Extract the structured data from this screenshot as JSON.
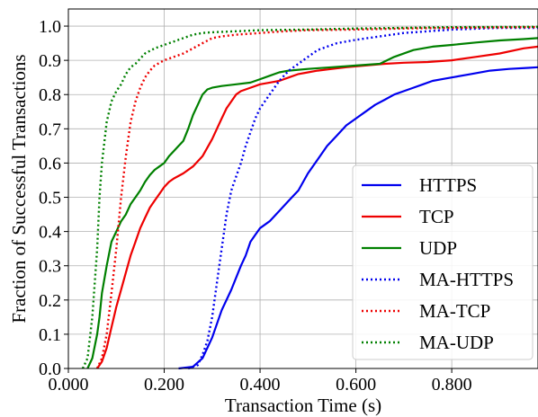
{
  "chart_data": {
    "type": "line",
    "xlabel": "Transaction Time (s)",
    "ylabel": "Fraction of Successful Transactions",
    "xlim": [
      0,
      0.98
    ],
    "ylim": [
      0,
      1.05
    ],
    "x_ticks": [
      0,
      0.2,
      0.4,
      0.6,
      0.8
    ],
    "x_tick_labels": [
      "0.000",
      "0.200",
      "0.400",
      "0.600",
      "0.800"
    ],
    "y_ticks": [
      0,
      0.1,
      0.2,
      0.3,
      0.4,
      0.5,
      0.6,
      0.7,
      0.8,
      0.9,
      1.0
    ],
    "y_tick_labels": [
      "0.0",
      "0.1",
      "0.2",
      "0.3",
      "0.4",
      "0.5",
      "0.6",
      "0.7",
      "0.8",
      "0.9",
      "1.0"
    ],
    "grid": true,
    "legend_position": "lower-right",
    "series": [
      {
        "name": "HTTPS",
        "color": "#0000ee",
        "style": "solid",
        "points": [
          [
            0.23,
            0
          ],
          [
            0.26,
            0.005
          ],
          [
            0.28,
            0.03
          ],
          [
            0.3,
            0.09
          ],
          [
            0.32,
            0.17
          ],
          [
            0.34,
            0.23
          ],
          [
            0.36,
            0.3
          ],
          [
            0.37,
            0.33
          ],
          [
            0.38,
            0.37
          ],
          [
            0.39,
            0.39
          ],
          [
            0.4,
            0.41
          ],
          [
            0.42,
            0.43
          ],
          [
            0.44,
            0.46
          ],
          [
            0.46,
            0.49
          ],
          [
            0.48,
            0.52
          ],
          [
            0.5,
            0.57
          ],
          [
            0.52,
            0.61
          ],
          [
            0.54,
            0.65
          ],
          [
            0.56,
            0.68
          ],
          [
            0.58,
            0.71
          ],
          [
            0.6,
            0.73
          ],
          [
            0.62,
            0.75
          ],
          [
            0.64,
            0.77
          ],
          [
            0.66,
            0.785
          ],
          [
            0.68,
            0.8
          ],
          [
            0.7,
            0.81
          ],
          [
            0.72,
            0.82
          ],
          [
            0.74,
            0.83
          ],
          [
            0.76,
            0.84
          ],
          [
            0.78,
            0.845
          ],
          [
            0.8,
            0.85
          ],
          [
            0.84,
            0.86
          ],
          [
            0.88,
            0.87
          ],
          [
            0.92,
            0.875
          ],
          [
            0.96,
            0.878
          ],
          [
            0.98,
            0.88
          ]
        ]
      },
      {
        "name": "TCP",
        "color": "#ee0000",
        "style": "solid",
        "points": [
          [
            0.06,
            0
          ],
          [
            0.07,
            0.02
          ],
          [
            0.08,
            0.06
          ],
          [
            0.09,
            0.12
          ],
          [
            0.1,
            0.18
          ],
          [
            0.11,
            0.23
          ],
          [
            0.12,
            0.28
          ],
          [
            0.13,
            0.33
          ],
          [
            0.14,
            0.37
          ],
          [
            0.15,
            0.41
          ],
          [
            0.16,
            0.44
          ],
          [
            0.17,
            0.47
          ],
          [
            0.18,
            0.49
          ],
          [
            0.19,
            0.51
          ],
          [
            0.2,
            0.53
          ],
          [
            0.21,
            0.545
          ],
          [
            0.22,
            0.555
          ],
          [
            0.24,
            0.57
          ],
          [
            0.26,
            0.59
          ],
          [
            0.28,
            0.62
          ],
          [
            0.3,
            0.67
          ],
          [
            0.31,
            0.7
          ],
          [
            0.32,
            0.73
          ],
          [
            0.33,
            0.76
          ],
          [
            0.34,
            0.78
          ],
          [
            0.35,
            0.8
          ],
          [
            0.36,
            0.81
          ],
          [
            0.38,
            0.82
          ],
          [
            0.4,
            0.83
          ],
          [
            0.42,
            0.835
          ],
          [
            0.44,
            0.84
          ],
          [
            0.46,
            0.85
          ],
          [
            0.48,
            0.86
          ],
          [
            0.5,
            0.865
          ],
          [
            0.52,
            0.87
          ],
          [
            0.55,
            0.875
          ],
          [
            0.58,
            0.88
          ],
          [
            0.62,
            0.885
          ],
          [
            0.66,
            0.89
          ],
          [
            0.7,
            0.893
          ],
          [
            0.75,
            0.895
          ],
          [
            0.8,
            0.9
          ],
          [
            0.85,
            0.91
          ],
          [
            0.9,
            0.92
          ],
          [
            0.95,
            0.935
          ],
          [
            0.98,
            0.94
          ]
        ]
      },
      {
        "name": "UDP",
        "color": "#008000",
        "style": "solid",
        "points": [
          [
            0.04,
            0
          ],
          [
            0.05,
            0.03
          ],
          [
            0.06,
            0.1
          ],
          [
            0.065,
            0.15
          ],
          [
            0.07,
            0.22
          ],
          [
            0.08,
            0.3
          ],
          [
            0.09,
            0.37
          ],
          [
            0.1,
            0.4
          ],
          [
            0.11,
            0.43
          ],
          [
            0.12,
            0.45
          ],
          [
            0.13,
            0.48
          ],
          [
            0.14,
            0.5
          ],
          [
            0.15,
            0.52
          ],
          [
            0.16,
            0.545
          ],
          [
            0.17,
            0.565
          ],
          [
            0.18,
            0.58
          ],
          [
            0.19,
            0.59
          ],
          [
            0.2,
            0.6
          ],
          [
            0.21,
            0.62
          ],
          [
            0.22,
            0.635
          ],
          [
            0.23,
            0.65
          ],
          [
            0.24,
            0.665
          ],
          [
            0.25,
            0.7
          ],
          [
            0.26,
            0.74
          ],
          [
            0.27,
            0.77
          ],
          [
            0.28,
            0.8
          ],
          [
            0.29,
            0.815
          ],
          [
            0.3,
            0.82
          ],
          [
            0.32,
            0.825
          ],
          [
            0.35,
            0.83
          ],
          [
            0.38,
            0.835
          ],
          [
            0.4,
            0.845
          ],
          [
            0.42,
            0.855
          ],
          [
            0.44,
            0.865
          ],
          [
            0.46,
            0.87
          ],
          [
            0.5,
            0.875
          ],
          [
            0.55,
            0.88
          ],
          [
            0.6,
            0.885
          ],
          [
            0.65,
            0.89
          ],
          [
            0.68,
            0.91
          ],
          [
            0.72,
            0.93
          ],
          [
            0.76,
            0.94
          ],
          [
            0.8,
            0.945
          ],
          [
            0.85,
            0.952
          ],
          [
            0.9,
            0.958
          ],
          [
            0.95,
            0.962
          ],
          [
            0.98,
            0.965
          ]
        ]
      },
      {
        "name": "MA-HTTPS",
        "color": "#0000ee",
        "style": "dotted",
        "points": [
          [
            0.25,
            0
          ],
          [
            0.27,
            0.01
          ],
          [
            0.28,
            0.04
          ],
          [
            0.29,
            0.08
          ],
          [
            0.3,
            0.15
          ],
          [
            0.31,
            0.25
          ],
          [
            0.32,
            0.35
          ],
          [
            0.33,
            0.45
          ],
          [
            0.34,
            0.52
          ],
          [
            0.35,
            0.56
          ],
          [
            0.36,
            0.6
          ],
          [
            0.37,
            0.65
          ],
          [
            0.38,
            0.69
          ],
          [
            0.39,
            0.73
          ],
          [
            0.4,
            0.76
          ],
          [
            0.42,
            0.8
          ],
          [
            0.44,
            0.84
          ],
          [
            0.46,
            0.87
          ],
          [
            0.48,
            0.89
          ],
          [
            0.5,
            0.91
          ],
          [
            0.52,
            0.93
          ],
          [
            0.54,
            0.94
          ],
          [
            0.56,
            0.95
          ],
          [
            0.58,
            0.955
          ],
          [
            0.6,
            0.96
          ],
          [
            0.65,
            0.97
          ],
          [
            0.7,
            0.98
          ],
          [
            0.75,
            0.985
          ],
          [
            0.8,
            0.99
          ],
          [
            0.9,
            0.995
          ],
          [
            0.98,
            0.995
          ]
        ]
      },
      {
        "name": "MA-TCP",
        "color": "#ee0000",
        "style": "dotted",
        "points": [
          [
            0.06,
            0
          ],
          [
            0.07,
            0.03
          ],
          [
            0.08,
            0.1
          ],
          [
            0.09,
            0.22
          ],
          [
            0.1,
            0.35
          ],
          [
            0.11,
            0.5
          ],
          [
            0.12,
            0.62
          ],
          [
            0.13,
            0.72
          ],
          [
            0.14,
            0.78
          ],
          [
            0.15,
            0.82
          ],
          [
            0.16,
            0.85
          ],
          [
            0.17,
            0.87
          ],
          [
            0.18,
            0.885
          ],
          [
            0.2,
            0.9
          ],
          [
            0.22,
            0.91
          ],
          [
            0.24,
            0.92
          ],
          [
            0.26,
            0.935
          ],
          [
            0.28,
            0.95
          ],
          [
            0.3,
            0.965
          ],
          [
            0.32,
            0.97
          ],
          [
            0.35,
            0.975
          ],
          [
            0.4,
            0.98
          ],
          [
            0.45,
            0.985
          ],
          [
            0.5,
            0.988
          ],
          [
            0.6,
            0.99
          ],
          [
            0.7,
            0.993
          ],
          [
            0.8,
            0.995
          ],
          [
            0.98,
            0.997
          ]
        ]
      },
      {
        "name": "MA-UDP",
        "color": "#008000",
        "style": "dotted",
        "points": [
          [
            0.03,
            0
          ],
          [
            0.04,
            0.03
          ],
          [
            0.05,
            0.15
          ],
          [
            0.06,
            0.35
          ],
          [
            0.065,
            0.5
          ],
          [
            0.07,
            0.6
          ],
          [
            0.08,
            0.72
          ],
          [
            0.09,
            0.78
          ],
          [
            0.1,
            0.81
          ],
          [
            0.11,
            0.83
          ],
          [
            0.12,
            0.86
          ],
          [
            0.13,
            0.88
          ],
          [
            0.14,
            0.89
          ],
          [
            0.15,
            0.905
          ],
          [
            0.16,
            0.92
          ],
          [
            0.18,
            0.935
          ],
          [
            0.2,
            0.945
          ],
          [
            0.22,
            0.955
          ],
          [
            0.24,
            0.965
          ],
          [
            0.26,
            0.975
          ],
          [
            0.28,
            0.98
          ],
          [
            0.3,
            0.982
          ],
          [
            0.35,
            0.985
          ],
          [
            0.4,
            0.988
          ],
          [
            0.5,
            0.99
          ],
          [
            0.6,
            0.993
          ],
          [
            0.7,
            0.995
          ],
          [
            0.8,
            0.997
          ],
          [
            0.98,
            0.998
          ]
        ]
      }
    ]
  }
}
